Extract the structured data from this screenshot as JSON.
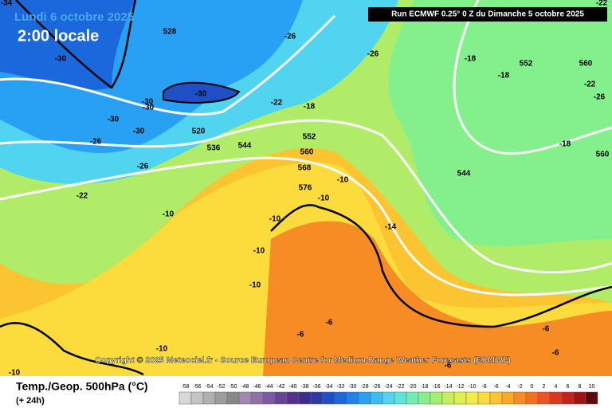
{
  "header": {
    "date": "Lundi 6 octobre 2025",
    "time": "2:00 locale",
    "run": "Run ECMWF 0.25° 0 Z du Dimanche 5 octobre 2025"
  },
  "copyright": "Copyright © 2025 Meteociel.fr - Source European Centre for Medium-Range Weather Forecasts (ECMWF)",
  "footer": {
    "title": "Temp./Geop. 500hPa (°C)",
    "subtitle": "(+ 24h)"
  },
  "legend": {
    "values": [
      -58,
      -56,
      -54,
      -52,
      -50,
      -48,
      -46,
      -44,
      -42,
      -40,
      -38,
      -36,
      -34,
      -32,
      -30,
      -28,
      -26,
      -24,
      -22,
      -20,
      -18,
      -16,
      -14,
      -12,
      -10,
      -8,
      -6,
      -4,
      -2,
      0,
      2,
      4,
      6,
      8,
      10
    ],
    "colors": [
      "#d8d8d8",
      "#c4c4c4",
      "#b0b0b0",
      "#9c9c9c",
      "#888888",
      "#a088b0",
      "#9070a8",
      "#7a5aa0",
      "#664498",
      "#55308c",
      "#3a2c90",
      "#2c3aa8",
      "#1f4fc4",
      "#1a68dc",
      "#1e84ec",
      "#28a0f4",
      "#3cbcf4",
      "#50d4f0",
      "#60e4d8",
      "#70ecb4",
      "#84f08c",
      "#a4f06c",
      "#c4f05c",
      "#e0f050",
      "#f4ec48",
      "#fcdc3c",
      "#fcc430",
      "#fca828",
      "#f88c24",
      "#f47020",
      "#ec5420",
      "#dc3820",
      "#c42418",
      "#a01410",
      "#600808"
    ]
  },
  "contour_labels": [
    -34,
    -22,
    528,
    -26,
    -26,
    -18,
    552,
    560,
    -18,
    -22,
    -26,
    -30,
    -30,
    -30,
    -30,
    -30,
    -30,
    520,
    -22,
    -18,
    552,
    536,
    544,
    560,
    -18,
    560,
    -26,
    -26,
    568,
    544,
    -10,
    576,
    -10,
    -22,
    -10,
    -10,
    -14,
    -10,
    -10,
    -6,
    -6,
    -6,
    -10,
    -6,
    -6,
    -10
  ]
}
